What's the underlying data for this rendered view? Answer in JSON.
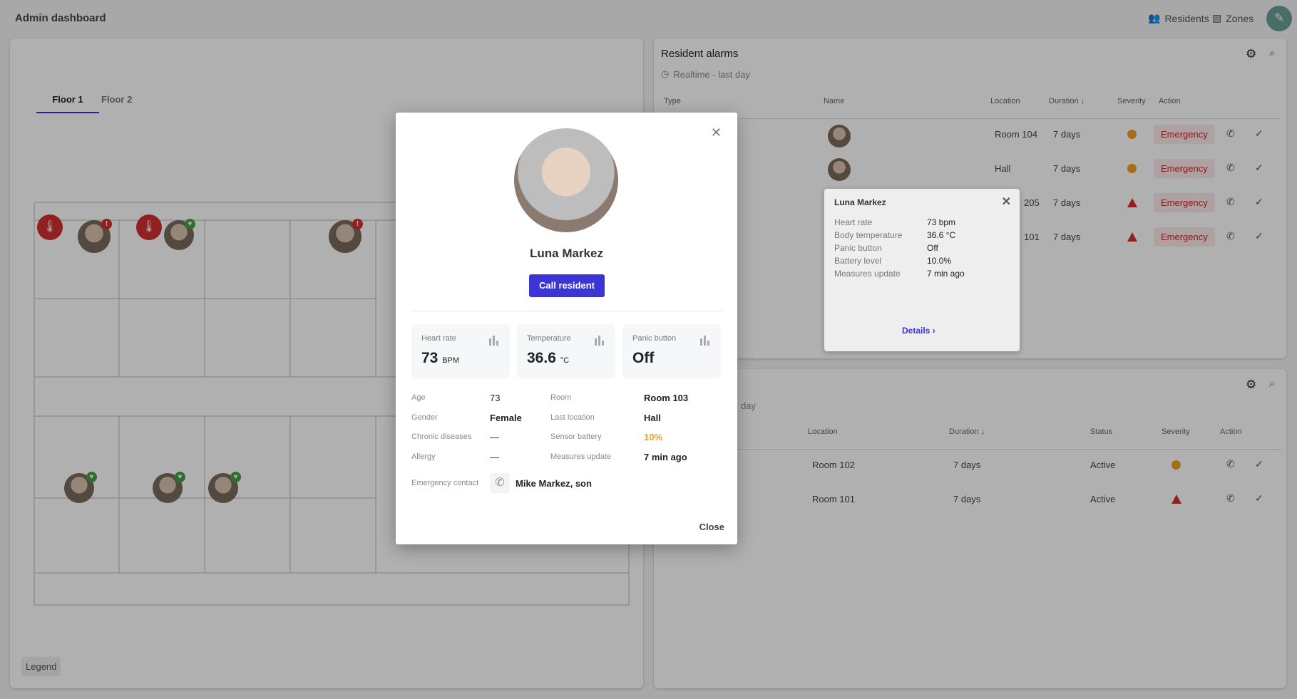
{
  "header": {
    "title": "Admin dashboard",
    "nav": [
      {
        "label": "Residents",
        "icon": "people-icon"
      },
      {
        "label": "Zones",
        "icon": "zones-icon"
      }
    ],
    "fab_icon": "edit-icon"
  },
  "floorplan": {
    "tabs": [
      {
        "label": "Floor 1",
        "active": true
      },
      {
        "label": "Floor 2",
        "active": false
      }
    ],
    "legend_label": "Legend"
  },
  "alarms": {
    "title": "Resident alarms",
    "subtitle": "Realtime - last day",
    "columns": [
      "Type",
      "Name",
      "Location",
      "Duration",
      "Severity",
      "Action"
    ],
    "rows": [
      {
        "location": "Room 104",
        "duration": "7 days",
        "severity": "warning",
        "type": "Emergency"
      },
      {
        "location": "Hall",
        "duration": "7 days",
        "severity": "warning",
        "type": "Emergency"
      },
      {
        "location": "205",
        "duration": "7 days",
        "severity": "critical",
        "type": "Emergency"
      },
      {
        "location": "101",
        "duration": "7 days",
        "severity": "critical",
        "type": "Emergency"
      }
    ]
  },
  "alarms2": {
    "subtitle": "day",
    "columns": [
      "Location",
      "Duration",
      "Status",
      "Severity",
      "Action"
    ],
    "rows": [
      {
        "location": "Room 102",
        "duration": "7 days",
        "status": "Active",
        "severity": "warning"
      },
      {
        "location": "Room 101",
        "duration": "7 days",
        "status": "Active",
        "severity": "critical"
      }
    ]
  },
  "popover": {
    "name": "Luna Markez",
    "fields": [
      {
        "k": "Heart rate",
        "v": "73 bpm"
      },
      {
        "k": "Body temperature",
        "v": "36.6 °C"
      },
      {
        "k": "Panic button",
        "v": "Off"
      },
      {
        "k": "Battery level",
        "v": "10.0%"
      },
      {
        "k": "Measures update",
        "v": "7 min ago"
      }
    ],
    "details_label": "Details"
  },
  "modal": {
    "name": "Luna Markez",
    "call_label": "Call resident",
    "cards": [
      {
        "label": "Heart rate",
        "value": "73",
        "unit": "BPM"
      },
      {
        "label": "Temperature",
        "value": "36.6",
        "unit": "°C"
      },
      {
        "label": "Panic button",
        "value": "Off",
        "unit": ""
      }
    ],
    "left": [
      {
        "k": "Age",
        "v": "73"
      },
      {
        "k": "Gender",
        "v": "Female"
      },
      {
        "k": "Chronic diseases",
        "v": "—"
      },
      {
        "k": "Allergy",
        "v": "—"
      }
    ],
    "right": [
      {
        "k": "Room",
        "v": "Room 103"
      },
      {
        "k": "Last location",
        "v": "Hall"
      },
      {
        "k": "Sensor battery",
        "v": "10%"
      },
      {
        "k": "Measures update",
        "v": "7 min ago"
      }
    ],
    "emergency_label": "Emergency contact",
    "emergency_value": "Mike Markez, son",
    "close_label": "Close"
  },
  "colors": {
    "accent": "#3b35d6",
    "warning": "#f0a020",
    "critical": "#d32f2f",
    "battery": "#f0a020"
  }
}
